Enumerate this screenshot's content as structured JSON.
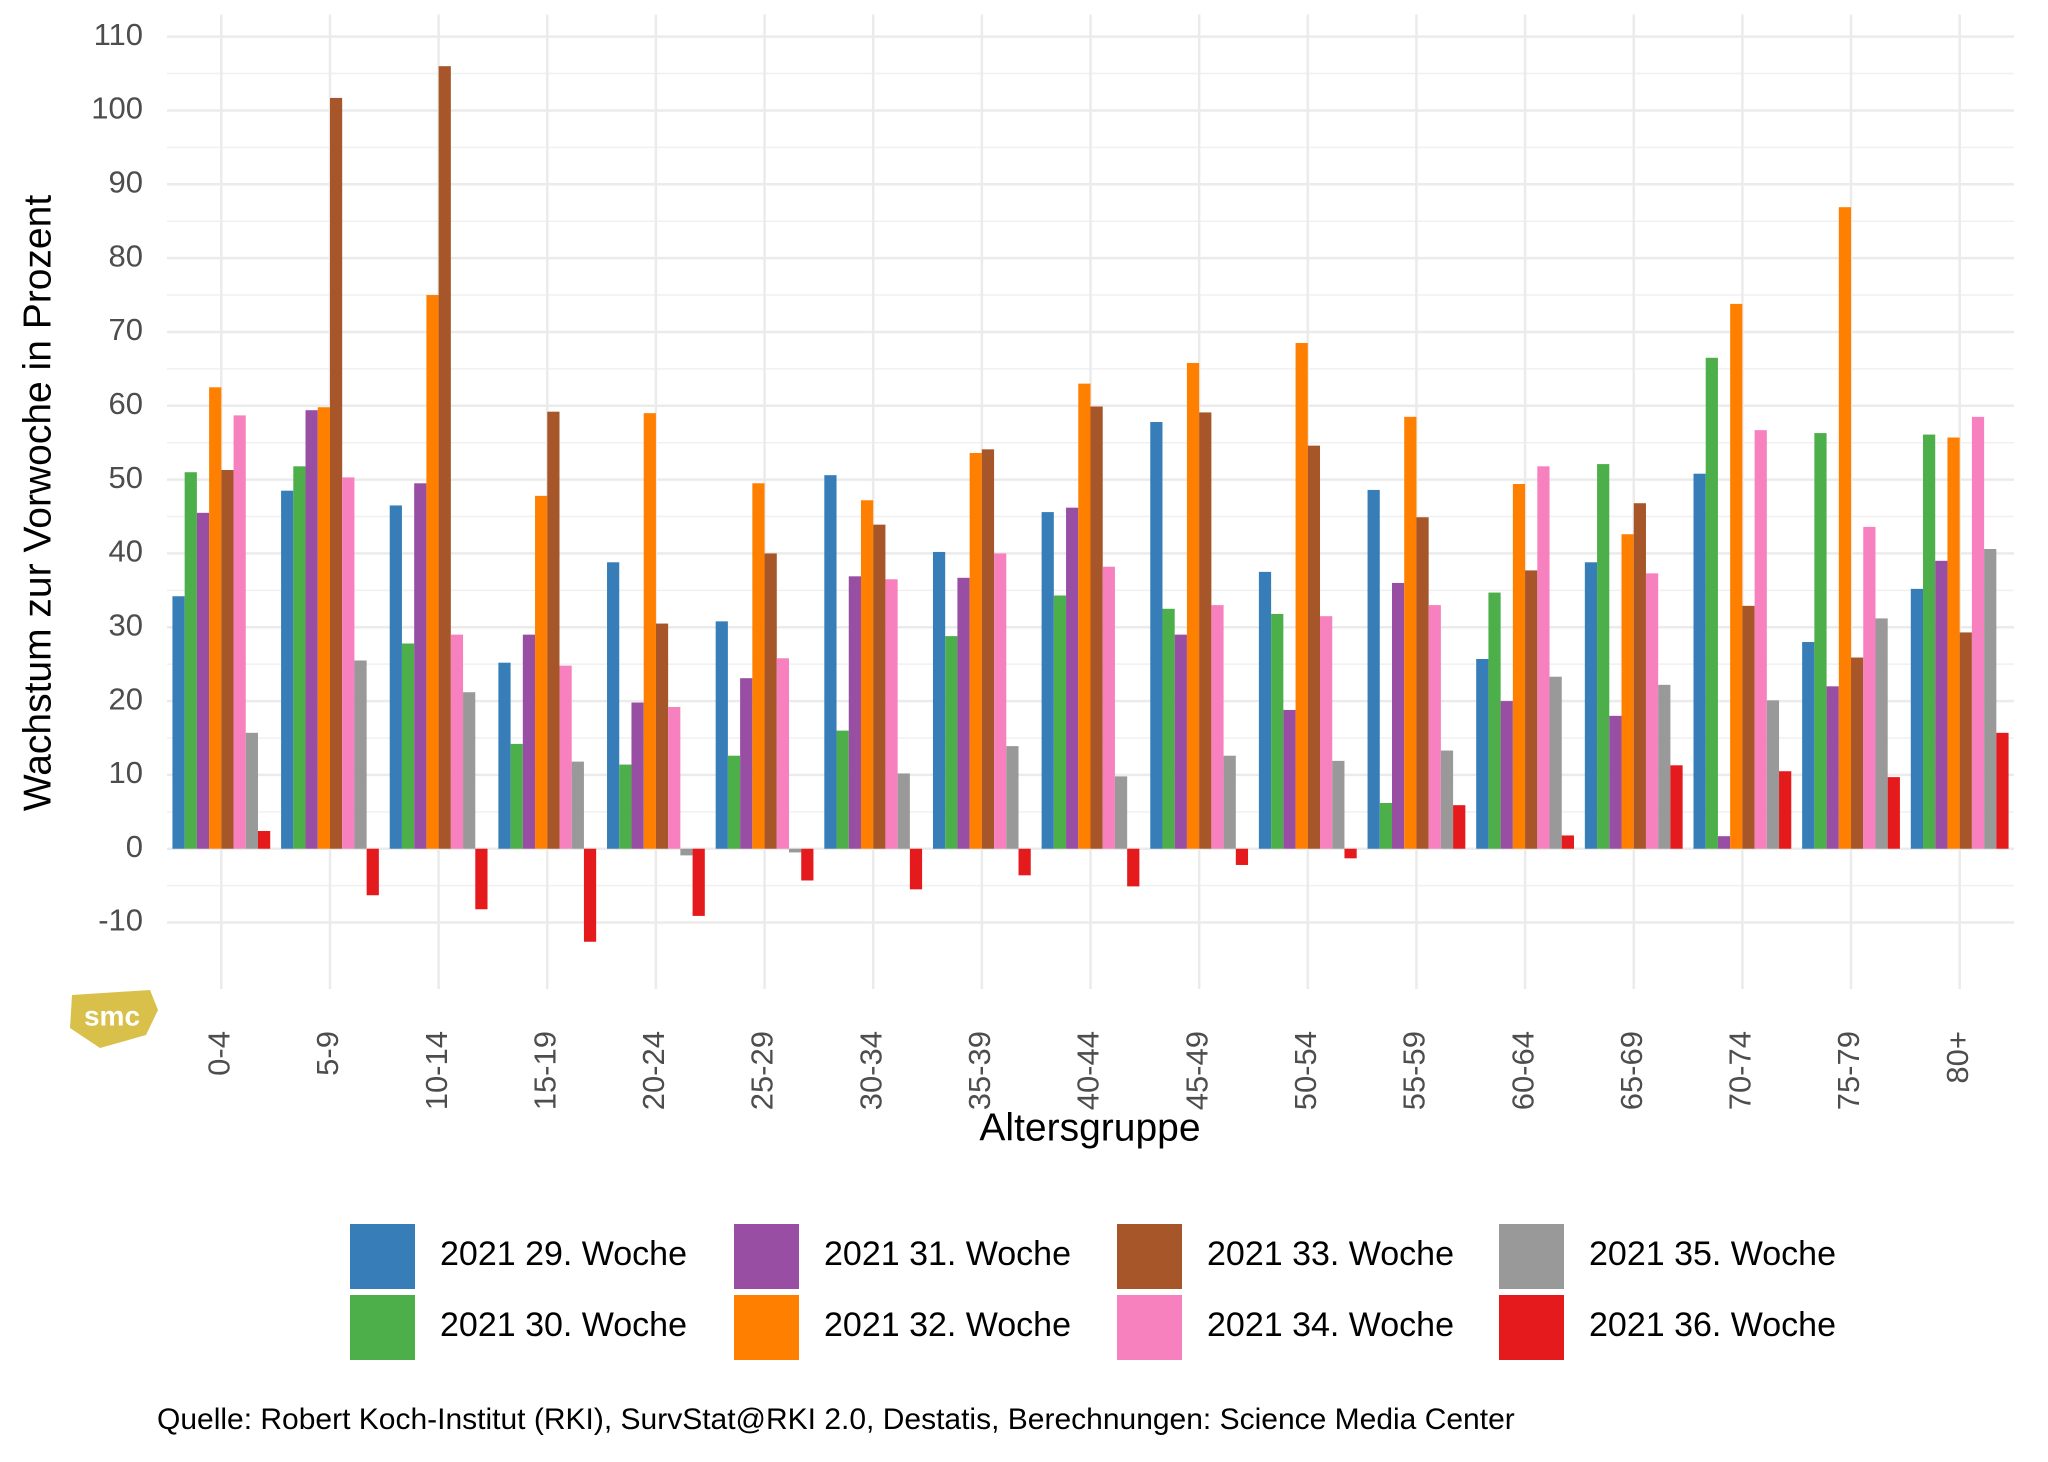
{
  "chart_data": {
    "type": "bar",
    "x_label": "Altersgruppe",
    "y_label": "Wachstum zur Vorwoche in Prozent",
    "source": "Quelle: Robert Koch-Institut (RKI), SurvStat@RKI 2.0, Destatis, Berechnungen: Science Media Center",
    "logo": "smc",
    "categories": [
      "0-4",
      "5-9",
      "10-14",
      "15-19",
      "20-24",
      "25-29",
      "30-34",
      "35-39",
      "40-44",
      "45-49",
      "50-54",
      "55-59",
      "60-64",
      "65-69",
      "70-74",
      "75-79",
      "80+"
    ],
    "ylim": [
      -19,
      113
    ],
    "yticks": [
      -10,
      0,
      10,
      20,
      30,
      40,
      50,
      60,
      70,
      80,
      90,
      100,
      110
    ],
    "grid": true,
    "series": [
      {
        "name": "2021 29. Woche",
        "color": "#377eb8",
        "values": [
          34.2,
          48.5,
          46.5,
          25.2,
          38.8,
          30.8,
          50.6,
          40.2,
          45.6,
          57.8,
          37.5,
          48.6,
          25.7,
          38.8,
          50.8,
          28,
          35.2
        ]
      },
      {
        "name": "2021 30. Woche",
        "color": "#4daf4a",
        "values": [
          51,
          51.8,
          27.8,
          14.2,
          11.4,
          12.6,
          16,
          28.8,
          34.3,
          32.5,
          31.8,
          6.2,
          34.7,
          52.1,
          66.5,
          56.3,
          56.1
        ]
      },
      {
        "name": "2021 31. Woche",
        "color": "#984ea3",
        "values": [
          45.5,
          59.4,
          49.5,
          29,
          19.8,
          23.1,
          36.9,
          36.7,
          46.2,
          29,
          18.8,
          36,
          20,
          18,
          1.7,
          22,
          39
        ]
      },
      {
        "name": "2021 32. Woche",
        "color": "#ff7f00",
        "values": [
          62.5,
          59.8,
          75,
          47.8,
          59,
          49.5,
          47.2,
          53.6,
          63,
          65.8,
          68.5,
          58.5,
          49.4,
          42.6,
          73.8,
          86.9,
          55.7
        ]
      },
      {
        "name": "2021 33. Woche",
        "color": "#a65628",
        "values": [
          51.3,
          101.7,
          106,
          59.2,
          30.5,
          40,
          43.9,
          54.1,
          59.9,
          59.1,
          54.6,
          44.9,
          37.7,
          46.8,
          32.9,
          25.9,
          29.3
        ]
      },
      {
        "name": "2021 34. Woche",
        "color": "#f781bf",
        "values": [
          58.7,
          50.3,
          29,
          24.8,
          19.2,
          25.8,
          36.5,
          40,
          38.2,
          33,
          31.5,
          33,
          51.8,
          37.3,
          56.7,
          43.6,
          58.5
        ]
      },
      {
        "name": "2021 35. Woche",
        "color": "#999999",
        "values": [
          15.7,
          25.5,
          21.2,
          11.8,
          -0.9,
          -0.5,
          10.2,
          13.9,
          9.8,
          12.6,
          11.9,
          13.3,
          23.3,
          22.2,
          20.1,
          31.2,
          40.6
        ]
      },
      {
        "name": "2021 36. Woche",
        "color": "#e41a1c",
        "values": [
          2.4,
          -6.3,
          -8.2,
          -12.6,
          -9.1,
          -4.3,
          -5.5,
          -3.6,
          -5.1,
          -2.2,
          -1.3,
          5.9,
          1.8,
          11.3,
          10.5,
          9.7,
          15.7
        ]
      }
    ]
  }
}
